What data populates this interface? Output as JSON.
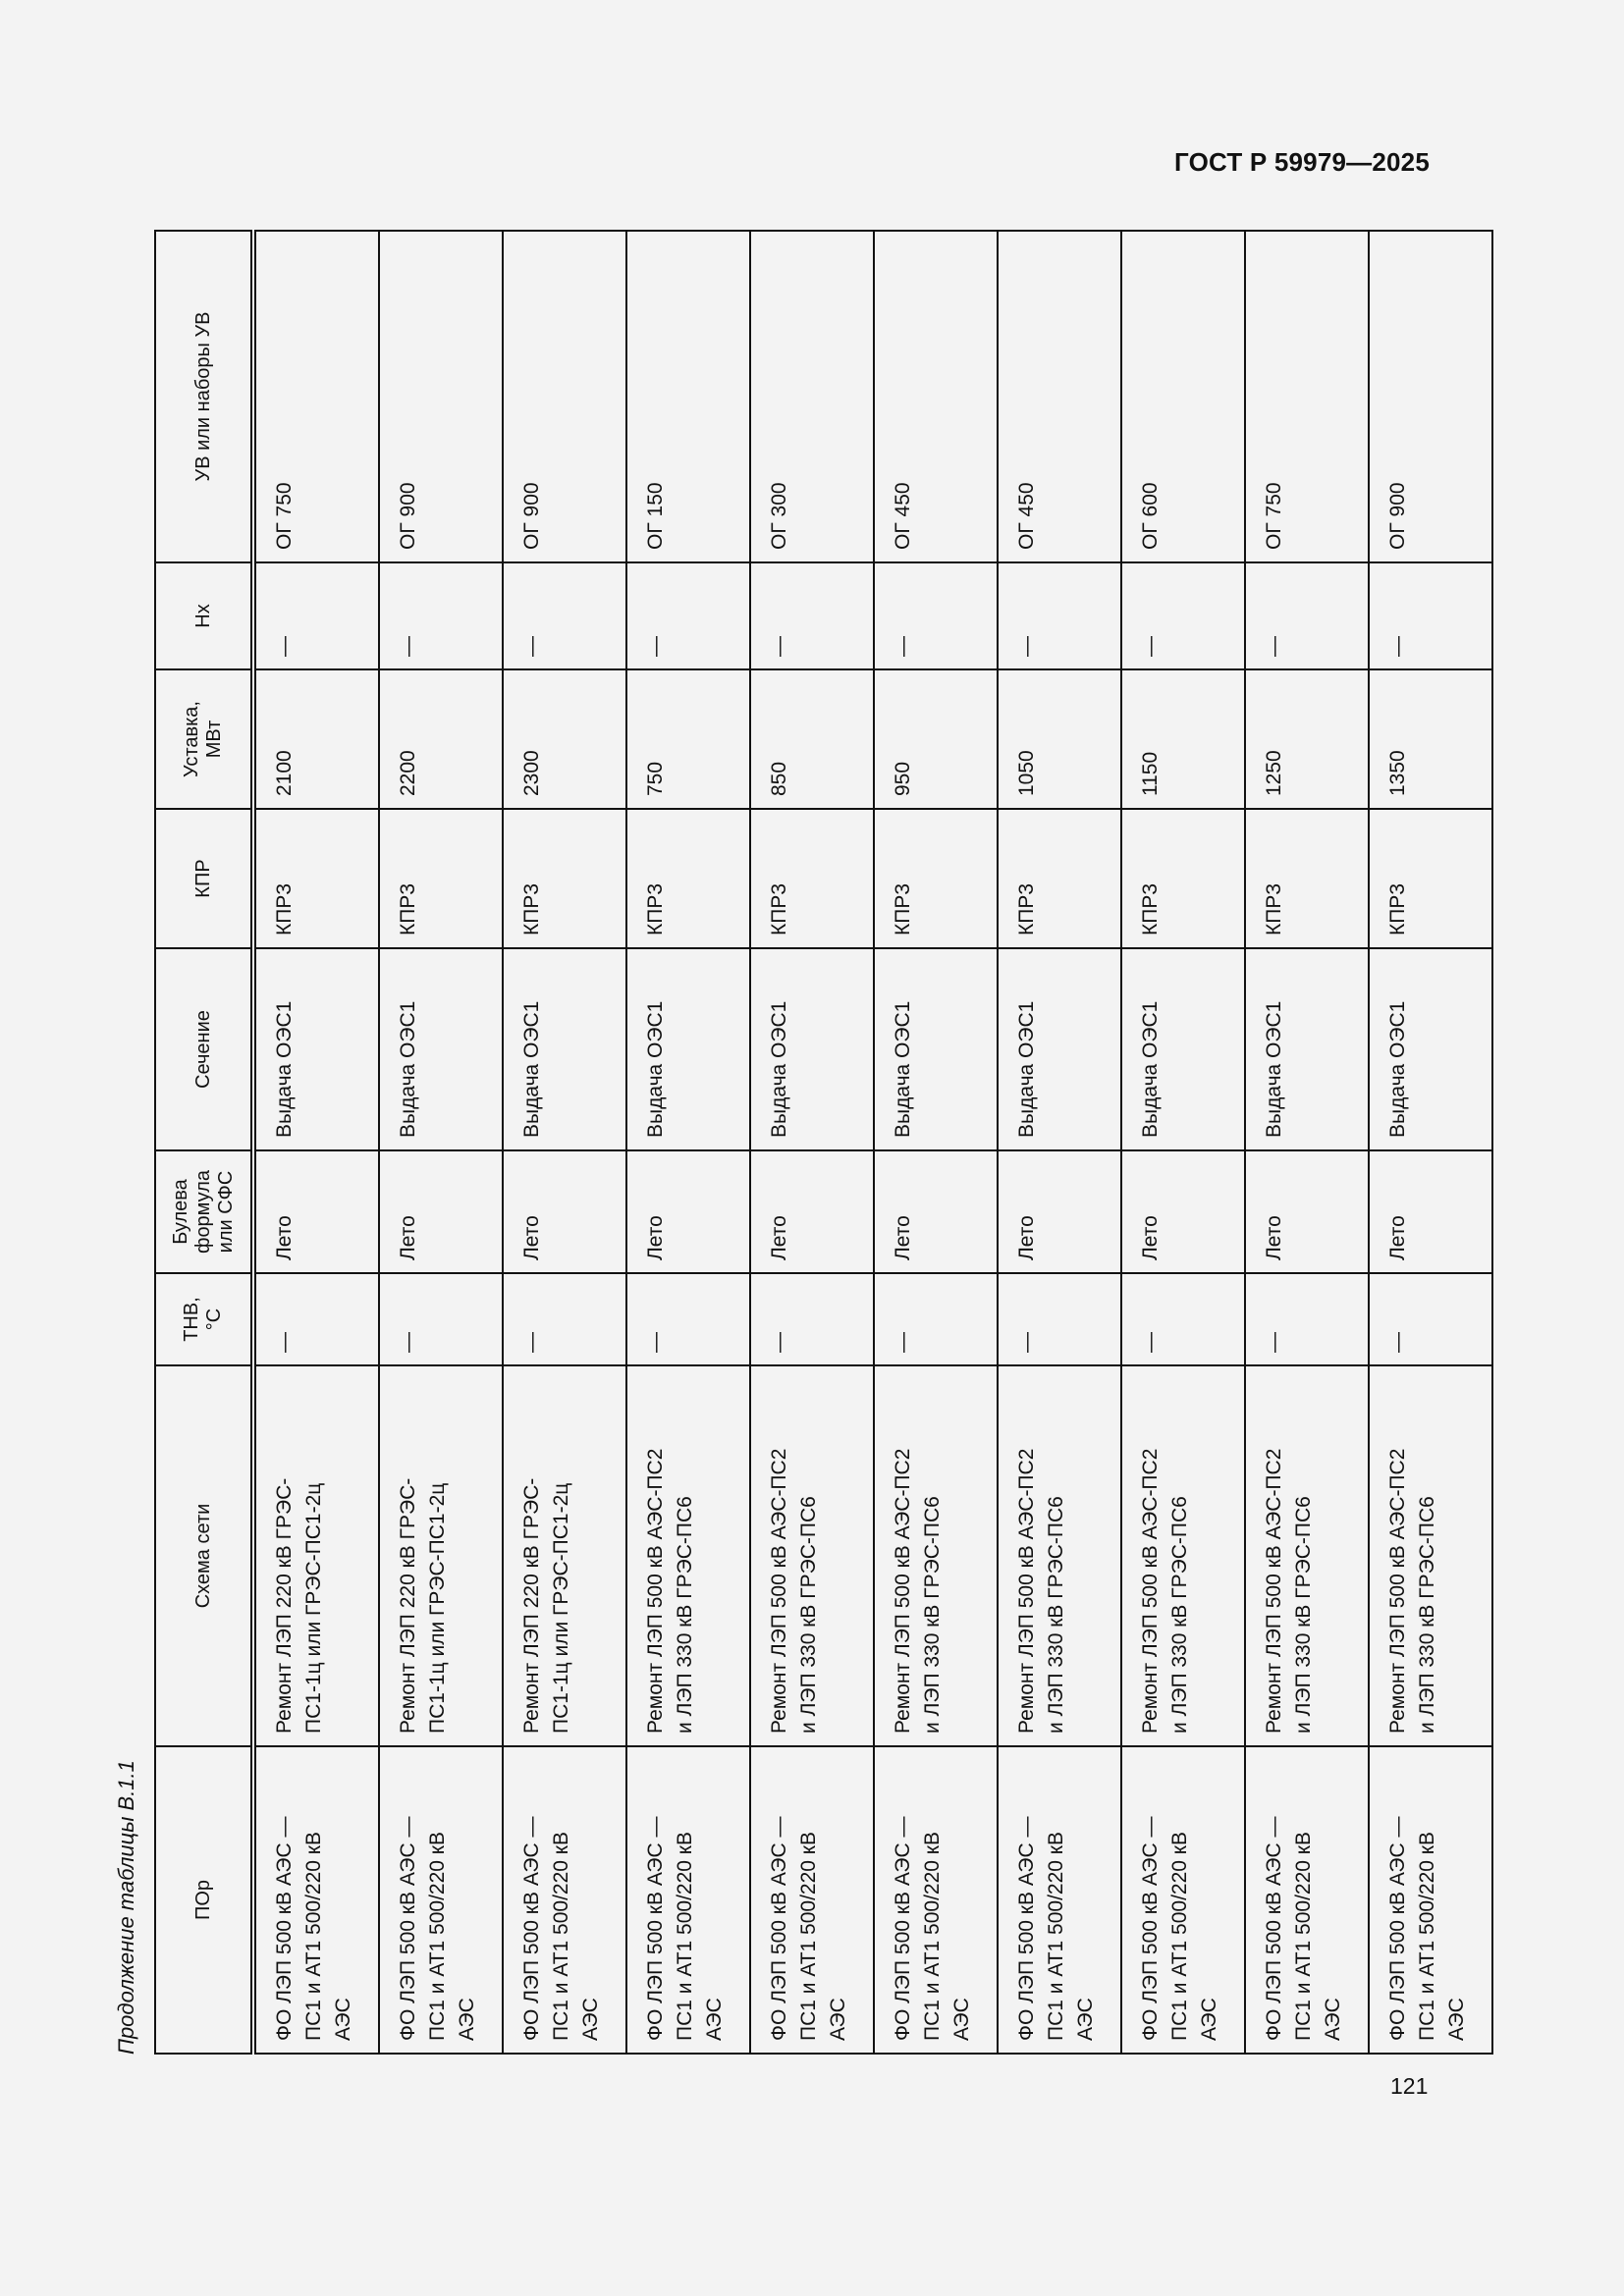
{
  "header": {
    "doc_code": "ГОСТ Р 59979—2025"
  },
  "caption": "Продолжение таблицы В.1.1",
  "page_number": "121",
  "table": {
    "columns": [
      "ПОр",
      "Схема сети",
      "ТНВ,\n°С",
      "Булева\nформула\nили СФС",
      "Сечение",
      "КПР",
      "Уставка,\nМВт",
      "Нх",
      "УВ или наборы УВ"
    ],
    "rows": [
      [
        "ФО ЛЭП 500 кВ АЭС —\nПС1 и АТ1 500/220 кВ\nАЭС",
        "Ремонт ЛЭП 220 кВ ГРЭС-\nПС1-1ц или ГРЭС-ПС1-2ц",
        "—",
        "Лето",
        "Выдача ОЭС1",
        "КПР3",
        "2100",
        "—",
        "ОГ 750"
      ],
      [
        "ФО ЛЭП 500 кВ АЭС —\nПС1 и АТ1 500/220 кВ\nАЭС",
        "Ремонт ЛЭП 220 кВ ГРЭС-\nПС1-1ц или ГРЭС-ПС1-2ц",
        "—",
        "Лето",
        "Выдача ОЭС1",
        "КПР3",
        "2200",
        "—",
        "ОГ 900"
      ],
      [
        "ФО ЛЭП 500 кВ АЭС —\nПС1 и АТ1 500/220 кВ\nАЭС",
        "Ремонт ЛЭП 220 кВ ГРЭС-\nПС1-1ц или ГРЭС-ПС1-2ц",
        "—",
        "Лето",
        "Выдача ОЭС1",
        "КПР3",
        "2300",
        "—",
        "ОГ 900"
      ],
      [
        "ФО ЛЭП 500 кВ АЭС —\nПС1 и АТ1 500/220 кВ\nАЭС",
        "Ремонт ЛЭП 500 кВ АЭС-ПС2\nи ЛЭП 330 кВ ГРЭС-ПС6",
        "—",
        "Лето",
        "Выдача ОЭС1",
        "КПР3",
        "750",
        "—",
        "ОГ 150"
      ],
      [
        "ФО ЛЭП 500 кВ АЭС —\nПС1 и АТ1 500/220 кВ\nАЭС",
        "Ремонт ЛЭП 500 кВ АЭС-ПС2\nи ЛЭП 330 кВ ГРЭС-ПС6",
        "—",
        "Лето",
        "Выдача ОЭС1",
        "КПР3",
        "850",
        "—",
        "ОГ 300"
      ],
      [
        "ФО ЛЭП 500 кВ АЭС —\nПС1 и АТ1 500/220 кВ\nАЭС",
        "Ремонт ЛЭП 500 кВ АЭС-ПС2\nи ЛЭП 330 кВ ГРЭС-ПС6",
        "—",
        "Лето",
        "Выдача ОЭС1",
        "КПР3",
        "950",
        "—",
        "ОГ 450"
      ],
      [
        "ФО ЛЭП 500 кВ АЭС —\nПС1 и АТ1 500/220 кВ\nАЭС",
        "Ремонт ЛЭП 500 кВ АЭС-ПС2\nи ЛЭП 330 кВ ГРЭС-ПС6",
        "—",
        "Лето",
        "Выдача ОЭС1",
        "КПР3",
        "1050",
        "—",
        "ОГ 450"
      ],
      [
        "ФО ЛЭП 500 кВ АЭС —\nПС1 и АТ1 500/220 кВ\nАЭС",
        "Ремонт ЛЭП 500 кВ АЭС-ПС2\nи ЛЭП 330 кВ ГРЭС-ПС6",
        "—",
        "Лето",
        "Выдача ОЭС1",
        "КПР3",
        "1150",
        "—",
        "ОГ 600"
      ],
      [
        "ФО ЛЭП 500 кВ АЭС —\nПС1 и АТ1 500/220 кВ\nАЭС",
        "Ремонт ЛЭП 500 кВ АЭС-ПС2\nи ЛЭП 330 кВ ГРЭС-ПС6",
        "—",
        "Лето",
        "Выдача ОЭС1",
        "КПР3",
        "1250",
        "—",
        "ОГ 750"
      ],
      [
        "ФО ЛЭП 500 кВ АЭС —\nПС1 и АТ1 500/220 кВ\nАЭС",
        "Ремонт ЛЭП 500 кВ АЭС-ПС2\nи ЛЭП 330 кВ ГРЭС-ПС6",
        "—",
        "Лето",
        "Выдача ОЭС1",
        "КПР3",
        "1350",
        "—",
        "ОГ 900"
      ]
    ]
  }
}
